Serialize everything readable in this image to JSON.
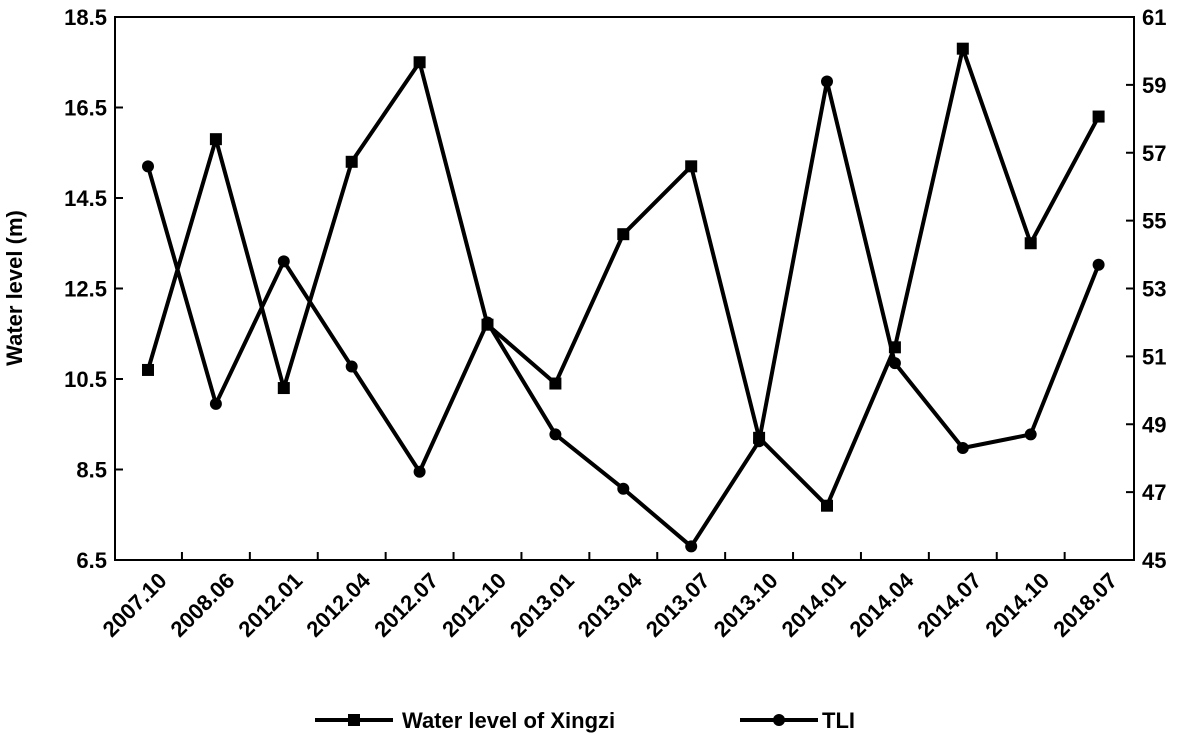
{
  "chart_data": {
    "type": "line",
    "categories": [
      "2007.10",
      "2008.06",
      "2012.01",
      "2012.04",
      "2012.07",
      "2012.10",
      "2013.01",
      "2013.04",
      "2013.07",
      "2013.10",
      "2014.01",
      "2014.04",
      "2014.07",
      "2014.10",
      "2018.07"
    ],
    "series": [
      {
        "name": "Water level of Xingzi",
        "axis": "left",
        "marker": "square",
        "values": [
          10.7,
          15.8,
          10.3,
          15.3,
          17.5,
          11.7,
          10.4,
          13.7,
          15.2,
          9.2,
          7.7,
          11.2,
          17.8,
          13.5,
          16.3
        ]
      },
      {
        "name": "TLI",
        "axis": "right",
        "marker": "circle",
        "values": [
          56.6,
          49.6,
          53.8,
          50.7,
          47.6,
          52.0,
          48.7,
          47.1,
          45.4,
          48.5,
          59.1,
          50.8,
          48.3,
          48.7,
          53.7
        ]
      }
    ],
    "ylabel": "Water level (m)",
    "ylim": [
      6.5,
      18.5
    ],
    "yticks": [
      "6.5",
      "8.5",
      "10.5",
      "12.5",
      "14.5",
      "16.5",
      "18.5"
    ],
    "y2lim": [
      45,
      61
    ],
    "y2ticks": [
      "45",
      "47",
      "49",
      "51",
      "53",
      "55",
      "57",
      "59",
      "61"
    ],
    "grid": false,
    "legend_position": "bottom"
  }
}
